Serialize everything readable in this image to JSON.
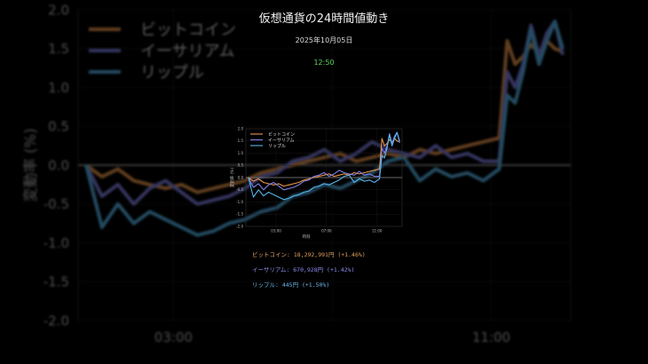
{
  "header": {
    "title": "仮想通貨の24時間値動き",
    "date": "2025年10月05日",
    "time": "12:50"
  },
  "prices": [
    {
      "name": "ビットコイン",
      "text": "ビットコイン: 18,292,991円 (+1.46%)",
      "color": "#e0a060"
    },
    {
      "name": "イーサリアム",
      "text": "イーサリアム: 670,928円 (+1.42%)",
      "color": "#8c8cf0"
    },
    {
      "name": "リップル",
      "text": "リップル: 445円 (+1.50%)",
      "color": "#6ab4e6"
    }
  ],
  "colors": {
    "btc": "#e8954a",
    "eth": "#7f7fe6",
    "xrp": "#56b4e9",
    "zero_line": "#8a8a8a",
    "axis": "#bbbbbb"
  },
  "chart_data": {
    "type": "line",
    "title": "仮想通貨の24時間値動き",
    "xlabel": "時刻",
    "ylabel": "変動率 (%)",
    "ylim": [
      -2.0,
      2.0
    ],
    "yticks": [
      "2.0",
      "1.5",
      "1.0",
      "0.5",
      "0.0",
      "-0.5",
      "-1.0",
      "-1.5",
      "-2.0"
    ],
    "xticks": [
      "03:00",
      "07:00",
      "11:00"
    ],
    "legend": [
      "ビットコイン",
      "イーサリアム",
      "リップル"
    ],
    "legend_position": "upper left",
    "grid": true,
    "x_hours": [
      0.8,
      1.2,
      1.6,
      2.0,
      2.4,
      2.8,
      3.2,
      3.6,
      4.0,
      4.4,
      4.8,
      5.2,
      5.6,
      6.0,
      6.4,
      6.8,
      7.2,
      7.6,
      8.0,
      8.4,
      8.8,
      9.2,
      9.6,
      10.0,
      10.4,
      10.8,
      11.2,
      11.4,
      11.6,
      11.8,
      12.0,
      12.2,
      12.4,
      12.6,
      12.8
    ],
    "series": [
      {
        "name": "ビットコイン",
        "values": [
          0.0,
          -0.15,
          -0.05,
          -0.2,
          -0.25,
          -0.3,
          -0.25,
          -0.35,
          -0.3,
          -0.25,
          -0.2,
          -0.1,
          -0.05,
          0.0,
          0.05,
          0.1,
          0.15,
          0.05,
          0.1,
          0.15,
          0.1,
          0.2,
          0.15,
          0.2,
          0.25,
          0.3,
          0.35,
          1.6,
          1.3,
          1.4,
          1.55,
          1.45,
          1.6,
          1.5,
          1.46
        ]
      },
      {
        "name": "イーサリアム",
        "values": [
          0.0,
          -0.4,
          -0.25,
          -0.5,
          -0.3,
          -0.2,
          -0.35,
          -0.5,
          -0.45,
          -0.4,
          -0.3,
          -0.15,
          -0.1,
          0.05,
          0.1,
          0.2,
          0.05,
          0.15,
          0.3,
          0.2,
          0.15,
          0.1,
          0.25,
          0.1,
          0.15,
          0.05,
          0.05,
          1.2,
          1.0,
          1.3,
          1.8,
          1.4,
          1.7,
          1.85,
          1.42
        ]
      },
      {
        "name": "リップル",
        "values": [
          0.0,
          -0.8,
          -0.5,
          -0.75,
          -0.6,
          -0.7,
          -0.8,
          -0.9,
          -0.85,
          -0.75,
          -0.7,
          -0.6,
          -0.55,
          -0.4,
          -0.35,
          -0.25,
          -0.3,
          -0.2,
          -0.1,
          0.05,
          0.1,
          -0.2,
          -0.05,
          -0.15,
          -0.1,
          -0.2,
          -0.05,
          0.9,
          0.8,
          1.2,
          1.75,
          1.3,
          1.6,
          1.85,
          1.5
        ]
      }
    ]
  }
}
